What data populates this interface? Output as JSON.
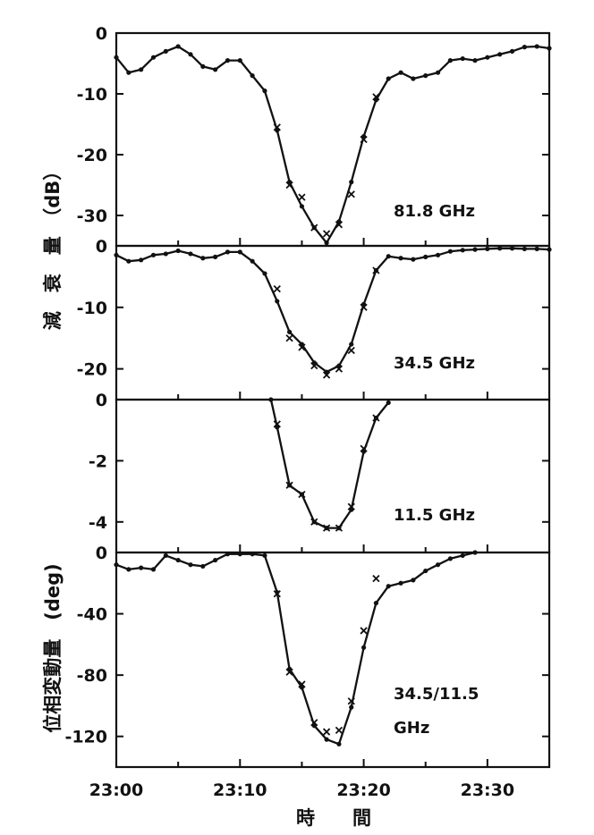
{
  "colors": {
    "ink": "#111111",
    "paper": "#ffffff"
  },
  "chart_data": [
    {
      "type": "line",
      "label": "81.8 GHz",
      "ylabel": "減　衰　量　（dB）",
      "xlim": [
        "23:00",
        "23:35"
      ],
      "ylim": [
        -35,
        0
      ],
      "yticks": [
        0,
        -10,
        -20,
        -30
      ],
      "series": [
        {
          "marker": "dot",
          "x": [
            "23:00",
            "23:01",
            "23:02",
            "23:03",
            "23:04",
            "23:05",
            "23:06",
            "23:07",
            "23:08",
            "23:09",
            "23:10",
            "23:11",
            "23:12",
            "23:13",
            "23:14",
            "23:15",
            "23:16",
            "23:17",
            "23:18",
            "23:19",
            "23:20",
            "23:21",
            "23:22",
            "23:23",
            "23:24",
            "23:25",
            "23:26",
            "23:27",
            "23:28",
            "23:29",
            "23:30",
            "23:31",
            "23:32",
            "23:33",
            "23:34",
            "23:35"
          ],
          "y": [
            -4,
            -6.5,
            -6,
            -4,
            -3,
            -2.2,
            -3.5,
            -5.5,
            -6,
            -4.5,
            -4.5,
            -7,
            -9.5,
            -16,
            -24.5,
            -28.5,
            -32,
            -34.5,
            -31,
            -24.5,
            -17,
            -11,
            -7.5,
            -6.5,
            -7.5,
            -7,
            -6.5,
            -4.5,
            -4.2,
            -4.5,
            -4,
            -3.5,
            -3,
            -2.3,
            -2.2,
            -2.5
          ]
        },
        {
          "marker": "cross",
          "x": [
            "23:13",
            "23:14",
            "23:15",
            "23:16",
            "23:17",
            "23:18",
            "23:19",
            "23:20",
            "23:21"
          ],
          "y": [
            -15.5,
            -25,
            -27,
            -32,
            -33,
            -31.5,
            -26.5,
            -17.5,
            -10.5
          ]
        }
      ]
    },
    {
      "type": "line",
      "label": "34.5 GHz",
      "xlim": [
        "23:00",
        "23:35"
      ],
      "ylim": [
        -25,
        0
      ],
      "yticks": [
        0,
        -10,
        -20
      ],
      "series": [
        {
          "marker": "dot",
          "x": [
            "23:00",
            "23:01",
            "23:02",
            "23:03",
            "23:04",
            "23:05",
            "23:06",
            "23:07",
            "23:08",
            "23:09",
            "23:10",
            "23:11",
            "23:12",
            "23:13",
            "23:14",
            "23:15",
            "23:16",
            "23:17",
            "23:18",
            "23:19",
            "23:20",
            "23:21",
            "23:22",
            "23:23",
            "23:24",
            "23:25",
            "23:26",
            "23:27",
            "23:28",
            "23:29",
            "23:30",
            "23:31",
            "23:32",
            "23:33",
            "23:34",
            "23:35"
          ],
          "y": [
            -1.5,
            -2.5,
            -2.3,
            -1.5,
            -1.3,
            -0.8,
            -1.3,
            -2,
            -1.8,
            -1,
            -1,
            -2.5,
            -4.5,
            -9,
            -14,
            -16,
            -19,
            -20.5,
            -19.5,
            -16,
            -9.5,
            -4,
            -1.7,
            -2,
            -2.2,
            -1.8,
            -1.5,
            -0.9,
            -0.7,
            -0.6,
            -0.5,
            -0.4,
            -0.4,
            -0.5,
            -0.5,
            -0.6
          ]
        },
        {
          "marker": "cross",
          "x": [
            "23:13",
            "23:14",
            "23:15",
            "23:16",
            "23:17",
            "23:18",
            "23:19",
            "23:20",
            "23:21"
          ],
          "y": [
            -7,
            -15,
            -16.5,
            -19.5,
            -21,
            -20,
            -17,
            -10,
            -4
          ]
        }
      ]
    },
    {
      "type": "line",
      "label": "11.5 GHz",
      "xlim": [
        "23:00",
        "23:35"
      ],
      "ylim": [
        -5,
        0
      ],
      "yticks": [
        0,
        -2,
        -4
      ],
      "series": [
        {
          "marker": "dot",
          "x": [
            "23:12:30",
            "23:13",
            "23:14",
            "23:15",
            "23:16",
            "23:17",
            "23:18",
            "23:19",
            "23:20",
            "23:21",
            "23:22"
          ],
          "y": [
            0,
            -0.9,
            -2.8,
            -3.1,
            -4,
            -4.2,
            -4.2,
            -3.6,
            -1.7,
            -0.6,
            -0.1
          ]
        },
        {
          "marker": "cross",
          "x": [
            "23:13",
            "23:14",
            "23:15",
            "23:16",
            "23:17",
            "23:18",
            "23:19",
            "23:20",
            "23:21"
          ],
          "y": [
            -0.8,
            -2.8,
            -3.1,
            -4,
            -4.2,
            -4.2,
            -3.5,
            -1.6,
            -0.6
          ]
        }
      ]
    },
    {
      "type": "line",
      "label": "34.5/11.5\nGHz",
      "ylabel": "位相変動量　(deg)",
      "xlabel": "時　　間",
      "xlim": [
        "23:00",
        "23:35"
      ],
      "ylim": [
        -140,
        0
      ],
      "yticks": [
        0,
        -40,
        -80,
        -120
      ],
      "xticks": [
        "23:00",
        "23:10",
        "23:20",
        "23:30"
      ],
      "series": [
        {
          "marker": "dot",
          "x": [
            "23:00",
            "23:01",
            "23:02",
            "23:03",
            "23:04",
            "23:05",
            "23:06",
            "23:07",
            "23:08",
            "23:09",
            "23:10",
            "23:11",
            "23:12",
            "23:13",
            "23:14",
            "23:15",
            "23:16",
            "23:17",
            "23:18",
            "23:19",
            "23:20",
            "23:21",
            "23:22",
            "23:23",
            "23:24",
            "23:25",
            "23:26",
            "23:27",
            "23:28",
            "23:29"
          ],
          "y": [
            -8,
            -11,
            -10,
            -11,
            -2,
            -5,
            -8,
            -9,
            -5,
            -1,
            -1,
            -1,
            -2,
            -26,
            -76,
            -88,
            -113,
            -122,
            -125,
            -101,
            -62,
            -33,
            -22,
            -20,
            -18,
            -12,
            -8,
            -4,
            -2,
            0
          ]
        },
        {
          "marker": "cross",
          "x": [
            "23:13",
            "23:14",
            "23:15",
            "23:16",
            "23:17",
            "23:18",
            "23:19",
            "23:20",
            "23:21"
          ],
          "y": [
            -27,
            -78,
            -86,
            -111,
            -117,
            -116,
            -97,
            -51,
            -17
          ]
        }
      ]
    }
  ]
}
